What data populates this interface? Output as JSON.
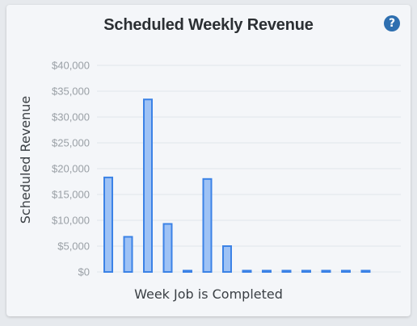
{
  "card": {
    "title": "Scheduled Weekly Revenue",
    "help_icon": "question-circle-icon",
    "help_symbol": "?"
  },
  "chart_data": {
    "type": "bar",
    "title": "Scheduled Weekly Revenue",
    "xlabel": "Week Job is Completed",
    "ylabel": "Scheduled Revenue",
    "ylim": [
      0,
      40000
    ],
    "yticks": [
      0,
      5000,
      10000,
      15000,
      20000,
      25000,
      30000,
      35000,
      40000
    ],
    "ytick_labels": [
      "$0",
      "$5,000",
      "$10,000",
      "$15,000",
      "$20,000",
      "$25,000",
      "$30,000",
      "$35,000",
      "$40,000"
    ],
    "values": [
      18300,
      6800,
      33400,
      9300,
      0,
      18000,
      5000,
      0,
      0,
      0,
      0,
      0,
      0,
      0
    ],
    "grid": true,
    "legend": "none",
    "colors": {
      "bar_fill": "#9ec2f5",
      "bar_stroke": "#3b82e6",
      "grid": "#e1e5ea"
    }
  }
}
